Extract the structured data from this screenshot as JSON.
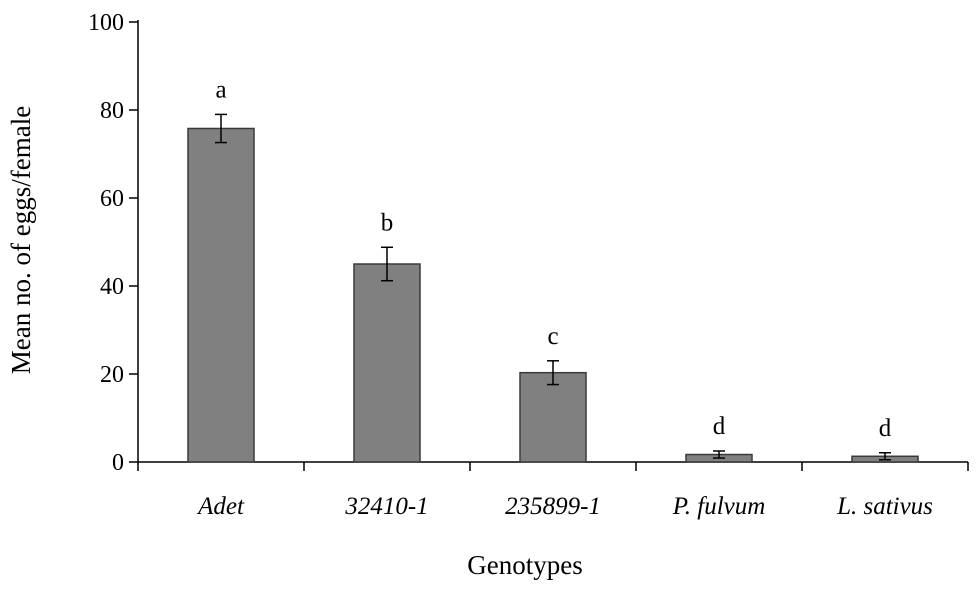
{
  "chart_data": {
    "type": "bar",
    "title": "",
    "xlabel": "Genotypes",
    "ylabel": "Mean no. of eggs/female",
    "ylim": [
      0,
      100
    ],
    "yticks": [
      0,
      20,
      40,
      60,
      80,
      100
    ],
    "categories": [
      "Adet",
      "32410-1",
      "235899-1",
      "P. fulvum",
      "L. sativus"
    ],
    "values": [
      75.8,
      45.0,
      20.3,
      1.7,
      1.3
    ],
    "errors": [
      3.2,
      3.8,
      2.7,
      0.8,
      0.8
    ],
    "significance_letters": [
      "a",
      "b",
      "c",
      "d",
      "d"
    ],
    "bar_color": "#808080",
    "grid": false,
    "legend": "none"
  }
}
